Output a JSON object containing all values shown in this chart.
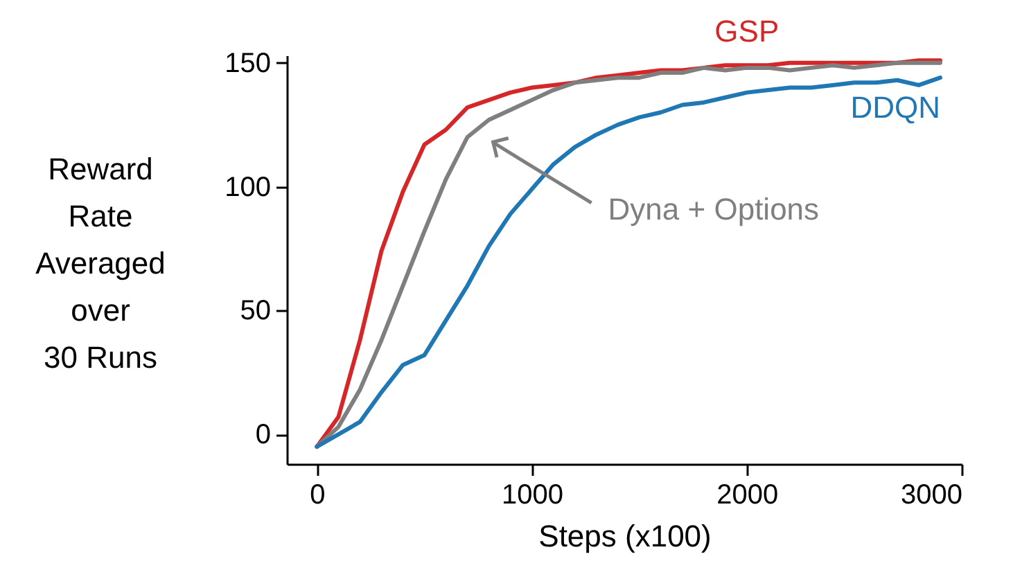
{
  "chart_data": {
    "type": "line",
    "xlabel": "Steps (x100)",
    "ylabel": "Reward\nRate\nAveraged\nover\n30 Runs",
    "x": [
      0,
      100,
      200,
      300,
      400,
      500,
      600,
      700,
      800,
      900,
      1000,
      1100,
      1200,
      1300,
      1400,
      1500,
      1600,
      1700,
      1800,
      1900,
      2000,
      2100,
      2200,
      2300,
      2400,
      2500,
      2600,
      2700,
      2800,
      2900
    ],
    "series": [
      {
        "name": "GSP",
        "color": "#d62728",
        "values": [
          -5,
          7,
          38,
          74,
          98,
          117,
          123,
          132,
          135,
          138,
          140,
          141,
          142,
          144,
          145,
          146,
          147,
          147,
          148,
          149,
          149,
          149,
          150,
          150,
          150,
          150,
          150,
          150,
          151,
          151
        ]
      },
      {
        "name": "Dyna + Options",
        "color": "#7f7f7f",
        "values": [
          -5,
          3,
          18,
          38,
          60,
          82,
          103,
          120,
          127,
          131,
          135,
          139,
          142,
          143,
          144,
          144,
          146,
          146,
          148,
          147,
          148,
          148,
          147,
          148,
          149,
          148,
          149,
          150,
          150,
          150
        ]
      },
      {
        "name": "DDQN",
        "color": "#1f77b4",
        "values": [
          -5,
          0,
          5,
          17,
          28,
          32,
          46,
          60,
          76,
          89,
          99,
          109,
          116,
          121,
          125,
          128,
          130,
          133,
          134,
          136,
          138,
          139,
          140,
          140,
          141,
          142,
          142,
          143,
          141,
          144
        ]
      }
    ],
    "xlim": [
      -140,
      3000
    ],
    "ylim": [
      -12,
      153
    ],
    "xticks": [
      0,
      1000,
      2000,
      3000
    ],
    "yticks": [
      0,
      50,
      100,
      150
    ],
    "grid": false,
    "legend": false,
    "marker": "none",
    "line_style": "solid"
  }
}
